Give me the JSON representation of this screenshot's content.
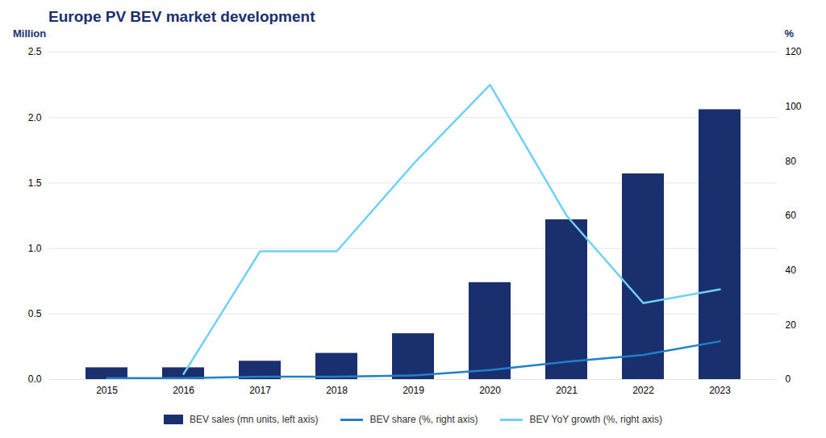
{
  "chart_data": {
    "type": "bar",
    "title": "Europe PV BEV market development",
    "categories": [
      "2015",
      "2016",
      "2017",
      "2018",
      "2019",
      "2020",
      "2021",
      "2022",
      "2023"
    ],
    "series": [
      {
        "name": "BEV sales (mn units, left axis)",
        "type": "bar",
        "color": "#1a2f6e",
        "values": [
          0.09,
          0.09,
          0.14,
          0.2,
          0.35,
          0.74,
          1.22,
          1.57,
          2.06
        ]
      },
      {
        "name": "BEV share (%, right axis)",
        "type": "line",
        "color": "#2080c8",
        "axis": "y2",
        "values": [
          0.5,
          0.5,
          1.0,
          1.0,
          1.5,
          3.5,
          6.5,
          9.0,
          14.0
        ]
      },
      {
        "name": "BEV YoY growth (%, right axis)",
        "type": "line",
        "color": "#70d0f5",
        "axis": "y2",
        "values": [
          null,
          2.0,
          47.0,
          47.0,
          79.0,
          108.0,
          60.0,
          28.0,
          33.0
        ]
      }
    ],
    "ylabel": "Million",
    "y2label": "%",
    "ylim": [
      0,
      2.5
    ],
    "yticks": [
      {
        "value": 0,
        "label": "0.0"
      },
      0.5,
      {
        "value": 1,
        "label": "1.0"
      },
      1.5,
      {
        "value": 2,
        "label": "2.0"
      },
      2.5
    ],
    "y2lim": [
      0,
      120
    ],
    "y2ticks": [
      0,
      20,
      40,
      60,
      80,
      100,
      120
    ],
    "grid": true,
    "legend": "bottom"
  }
}
